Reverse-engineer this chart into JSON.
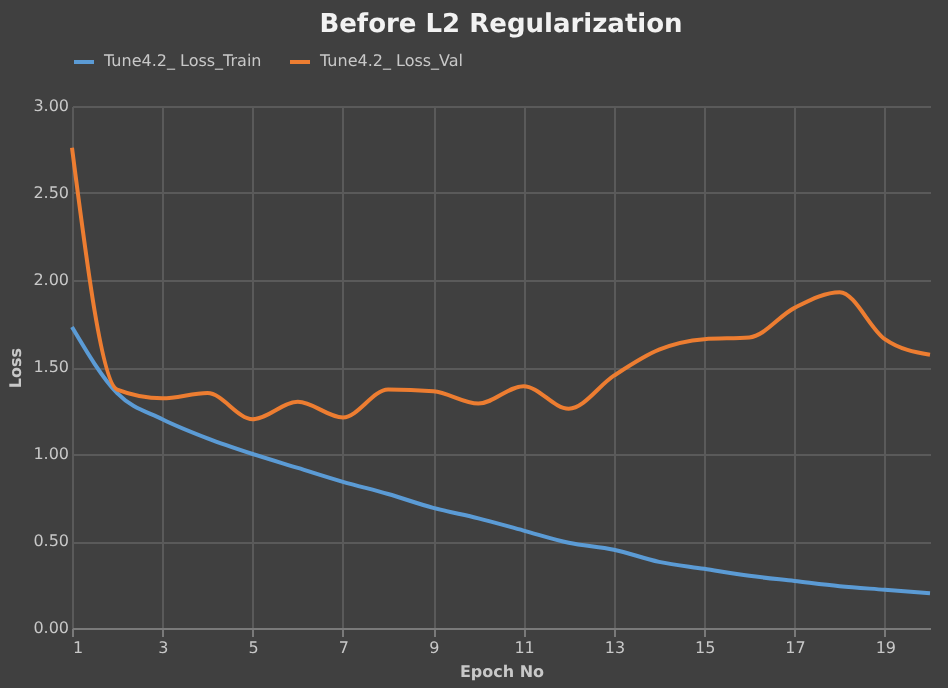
{
  "chart_data": {
    "type": "line",
    "title": "Before L2 Regularization",
    "xlabel": "Epoch No",
    "ylabel": "Loss",
    "x": [
      1,
      2,
      3,
      4,
      5,
      6,
      7,
      8,
      9,
      10,
      11,
      12,
      13,
      14,
      15,
      16,
      17,
      18,
      19,
      20
    ],
    "series": [
      {
        "name": "Tune4.2_ Loss_Train",
        "color": "#5b9bd5",
        "values": [
          1.73,
          1.35,
          1.2,
          1.09,
          1.0,
          0.92,
          0.84,
          0.77,
          0.69,
          0.63,
          0.56,
          0.49,
          0.45,
          0.38,
          0.34,
          0.3,
          0.27,
          0.24,
          0.22,
          0.2
        ]
      },
      {
        "name": "Tune4.2_ Loss_Val",
        "color": "#ed7d31",
        "values": [
          2.76,
          1.37,
          1.32,
          1.35,
          1.2,
          1.3,
          1.21,
          1.37,
          1.36,
          1.29,
          1.39,
          1.26,
          1.45,
          1.6,
          1.66,
          1.67,
          1.84,
          1.93,
          1.66,
          1.57
        ]
      }
    ],
    "xlim": [
      1,
      20
    ],
    "xticks": [
      1,
      3,
      5,
      7,
      9,
      11,
      13,
      15,
      17,
      19
    ],
    "ylim": [
      0,
      3
    ],
    "yticks": [
      {
        "value": 0,
        "label": "0.00"
      },
      {
        "value": 0.5,
        "label": "0.50"
      },
      {
        "value": 1,
        "label": "1.00"
      },
      {
        "value": 1.5,
        "label": "1.50"
      },
      {
        "value": 2,
        "label": "2.00"
      },
      {
        "value": 2.5,
        "label": "2.50"
      },
      {
        "value": 3,
        "label": "3.00"
      }
    ],
    "grid": true,
    "legend": "top",
    "marker": "none",
    "line_style": "solid"
  }
}
